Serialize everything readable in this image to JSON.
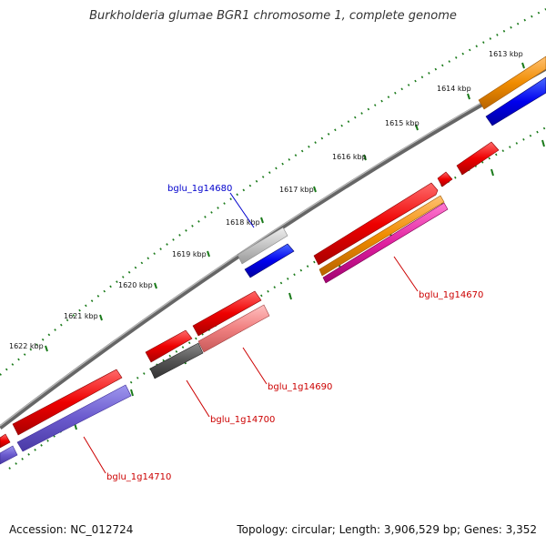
{
  "title": "Burkholderia glumae BGR1 chromosome 1, complete genome",
  "footer": {
    "accession": "Accession: NC_012724",
    "summary": "Topology: circular; Length: 3,906,529 bp; Genes: 3,352"
  },
  "colors": {
    "backbone": "#777777",
    "tick": "#1a7a1a",
    "label_red": "#cc0000",
    "label_blue": "#0000cc"
  },
  "scale_labels": [
    "1613 kbp",
    "1614 kbp",
    "1615 kbp",
    "1616 kbp",
    "1617 kbp",
    "1618 kbp",
    "1619 kbp",
    "1620 kbp",
    "1621 kbp",
    "1622 kbp"
  ],
  "gene_labels": [
    {
      "name": "bglu_1g14680",
      "color": "#0000cc"
    },
    {
      "name": "bglu_1g14670",
      "color": "#cc0000"
    },
    {
      "name": "bglu_1g14690",
      "color": "#cc0000"
    },
    {
      "name": "bglu_1g14700",
      "color": "#cc0000"
    },
    {
      "name": "bglu_1g14710",
      "color": "#cc0000"
    }
  ]
}
